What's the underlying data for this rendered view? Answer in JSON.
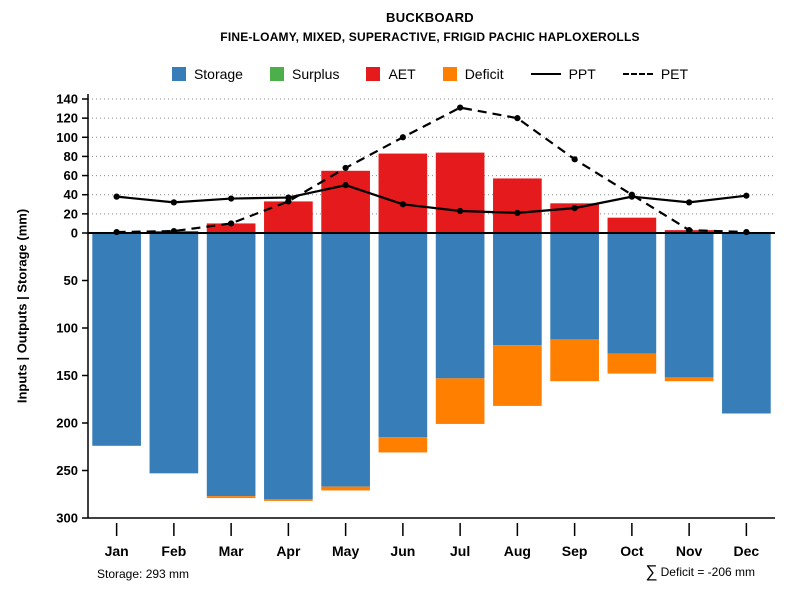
{
  "title": "BUCKBOARD",
  "subtitle": "FINE-LOAMY, MIXED, SUPERACTIVE, FRIGID PACHIC HAPLOXEROLLS",
  "ylabel": "Inputs | Outputs | Storage  (mm)",
  "footer": {
    "storage_note": "Storage: 293 mm",
    "deficit_sigma": "∑",
    "deficit_note": " Deficit = -206 mm"
  },
  "legend": {
    "items": [
      {
        "label": "Storage",
        "color": "#377eb8",
        "swatch": "box"
      },
      {
        "label": "Surplus",
        "color": "#4daf4a",
        "swatch": "box"
      },
      {
        "label": "AET",
        "color": "#e41a1c",
        "swatch": "box"
      },
      {
        "label": "Deficit",
        "color": "#ff7f00",
        "swatch": "box"
      },
      {
        "label": "PPT",
        "color": "#000000",
        "swatch": "solid-line"
      },
      {
        "label": "PET",
        "color": "#000000",
        "swatch": "dashed-line"
      }
    ]
  },
  "chart_data": {
    "type": "bar",
    "title": "BUCKBOARD",
    "subtitle": "FINE-LOAMY, MIXED, SUPERACTIVE, FRIGID PACHIC HAPLOXEROLLS",
    "ylabel": "Inputs | Outputs | Storage  (mm)",
    "categories": [
      "Jan",
      "Feb",
      "Mar",
      "Apr",
      "May",
      "Jun",
      "Jul",
      "Aug",
      "Sep",
      "Oct",
      "Nov",
      "Dec"
    ],
    "series": [
      {
        "name": "Storage",
        "kind": "bar",
        "direction": "down",
        "color": "#377eb8",
        "values": [
          224,
          253,
          277,
          280,
          267,
          215,
          153,
          118,
          112,
          127,
          152,
          190
        ]
      },
      {
        "name": "Deficit",
        "kind": "bar",
        "direction": "down",
        "stacked_on": "Storage",
        "color": "#ff7f00",
        "values": [
          0,
          0,
          2,
          2,
          4,
          16,
          48,
          64,
          44,
          21,
          4,
          0
        ]
      },
      {
        "name": "Surplus",
        "kind": "bar",
        "direction": "up",
        "color": "#4daf4a",
        "values": [
          0,
          0,
          0,
          0,
          0,
          0,
          0,
          0,
          0,
          0,
          0,
          0
        ]
      },
      {
        "name": "AET",
        "kind": "bar",
        "direction": "up",
        "color": "#e41a1c",
        "values": [
          1,
          2,
          10,
          33,
          65,
          83,
          84,
          57,
          31,
          16,
          3,
          1
        ]
      },
      {
        "name": "PPT",
        "kind": "line",
        "style": "solid",
        "color": "#000000",
        "values": [
          38,
          32,
          36,
          37,
          50,
          30,
          23,
          21,
          26,
          38,
          32,
          39
        ]
      },
      {
        "name": "PET",
        "kind": "line",
        "style": "dashed",
        "color": "#000000",
        "values": [
          1,
          2,
          10,
          33,
          68,
          100,
          131,
          120,
          77,
          40,
          3,
          1
        ]
      }
    ],
    "upper_axis": {
      "ticks": [
        0,
        20,
        40,
        60,
        80,
        100,
        120,
        140
      ],
      "max": 140,
      "grid": "dotted"
    },
    "lower_axis": {
      "ticks": [
        50,
        100,
        150,
        200,
        250,
        300
      ],
      "max": 300,
      "grid": "off",
      "inverted": true
    },
    "legend_position": "top",
    "annotations": [
      "Storage: 293 mm",
      "∑ Deficit = -206 mm"
    ]
  }
}
